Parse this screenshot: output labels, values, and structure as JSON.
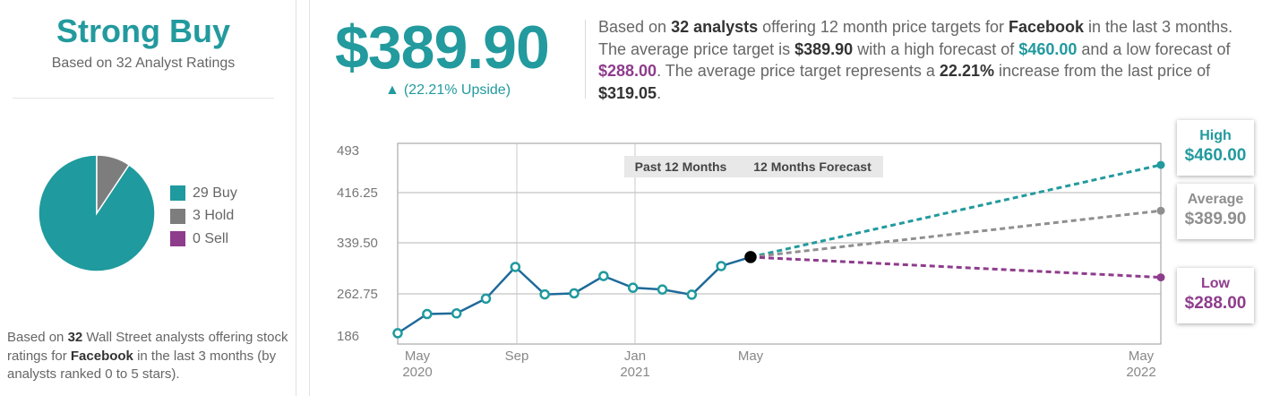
{
  "rating": {
    "title": "Strong Buy",
    "subtitle": "Based on 32 Analyst Ratings",
    "legend": [
      {
        "label": "29 Buy",
        "count": 29,
        "color": "#1f9a9e"
      },
      {
        "label": "3 Hold",
        "count": 3,
        "color": "#7d7d7d"
      },
      {
        "label": "0 Sell",
        "count": 0,
        "color": "#8e3c8c"
      }
    ],
    "footer": {
      "t1": "Based on ",
      "count": "32",
      "t2": " Wall Street analysts offering stock ratings for ",
      "company": "Facebook",
      "t3": " in the last 3 months (by analysts ranked 0 to 5 stars)."
    }
  },
  "price_target": {
    "value": "$389.90",
    "upside_arrow": "▲",
    "upside_text": "(22.21% Upside)"
  },
  "summary": {
    "s1": "Based on ",
    "analysts": "32 analysts",
    "s2": " offering 12 month price targets for ",
    "company": "Facebook",
    "s3": " in the last 3 months. The average price target is ",
    "avg": "$389.90",
    "s4": " with a high forecast of ",
    "high": "$460.00",
    "s5": " and a low forecast of ",
    "low": "$288.00",
    "s6": ". The average price target represents a ",
    "pct": "22.21%",
    "s7": " increase from the last price of ",
    "last": "$319.05",
    "s8": "."
  },
  "chart_data": {
    "type": "line",
    "tabs": [
      "Past 12 Months",
      "12 Months Forecast"
    ],
    "y_ticks": [
      "493",
      "416.25",
      "339.50",
      "262.75",
      "186"
    ],
    "ylim": [
      186,
      493
    ],
    "x_ticks": [
      {
        "line1": "May",
        "line2": "2020"
      },
      {
        "line1": "Sep",
        "line2": ""
      },
      {
        "line1": "Jan",
        "line2": "2021"
      },
      {
        "line1": "May",
        "line2": ""
      },
      {
        "line1": "May",
        "line2": "2022"
      }
    ],
    "past_prices": [
      202.6,
      231.9,
      232.9,
      255.5,
      303.9,
      261.9,
      263.6,
      290.0,
      272.1,
      269.4,
      261.5,
      305.3,
      319.05
    ],
    "forecasts": [
      {
        "label": "High",
        "value": "$460.00",
        "price": 460.0,
        "color": "#229a9e"
      },
      {
        "label": "Average",
        "value": "$389.90",
        "price": 389.9,
        "color": "#8f8f8f"
      },
      {
        "label": "Low",
        "value": "$288.00",
        "price": 288.0,
        "color": "#8e3c8c"
      }
    ],
    "colors": {
      "line": "#1f6a9a",
      "current": "#000000"
    }
  }
}
